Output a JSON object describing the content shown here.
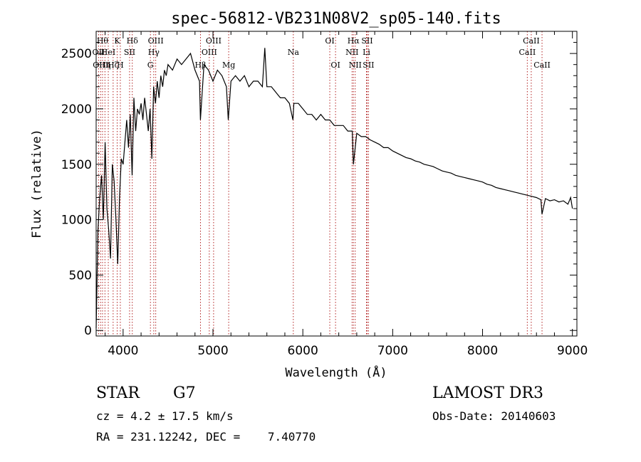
{
  "chart_data": {
    "type": "line",
    "title": "spec-56812-VB231N08V2_sp05-140.fits",
    "xlabel": "Wavelength (Å)",
    "ylabel": "Flux (relative)",
    "xlim": [
      3700,
      9050
    ],
    "ylim": [
      -50,
      2700
    ],
    "xticks": [
      4000,
      5000,
      6000,
      7000,
      8000,
      9000
    ],
    "yticks": [
      0,
      500,
      1000,
      1500,
      2000,
      2500
    ],
    "x": [
      3700,
      3720,
      3740,
      3760,
      3780,
      3800,
      3820,
      3840,
      3860,
      3880,
      3900,
      3920,
      3940,
      3960,
      3980,
      4000,
      4020,
      4040,
      4060,
      4080,
      4100,
      4120,
      4140,
      4160,
      4180,
      4200,
      4220,
      4240,
      4260,
      4280,
      4300,
      4320,
      4340,
      4360,
      4380,
      4400,
      4420,
      4440,
      4460,
      4480,
      4500,
      4550,
      4600,
      4650,
      4700,
      4750,
      4800,
      4850,
      4860,
      4900,
      4950,
      5000,
      5050,
      5100,
      5150,
      5170,
      5200,
      5250,
      5300,
      5350,
      5400,
      5450,
      5500,
      5550,
      5577,
      5600,
      5650,
      5700,
      5750,
      5800,
      5850,
      5890,
      5900,
      5950,
      6000,
      6050,
      6100,
      6150,
      6200,
      6250,
      6300,
      6350,
      6400,
      6450,
      6500,
      6550,
      6563,
      6600,
      6650,
      6700,
      6750,
      6800,
      6850,
      6900,
      6950,
      7000,
      7050,
      7100,
      7150,
      7200,
      7250,
      7300,
      7350,
      7400,
      7450,
      7500,
      7550,
      7600,
      7650,
      7700,
      7750,
      7800,
      7850,
      7900,
      7950,
      8000,
      8050,
      8100,
      8150,
      8200,
      8250,
      8300,
      8350,
      8400,
      8450,
      8500,
      8550,
      8600,
      8650,
      8662,
      8700,
      8750,
      8800,
      8850,
      8900,
      8950,
      8980,
      9000
    ],
    "y": [
      20,
      900,
      1200,
      1400,
      1000,
      1700,
      1100,
      900,
      650,
      1500,
      1350,
      1000,
      600,
      1200,
      1550,
      1500,
      1700,
      1900,
      1650,
      1950,
      1400,
      2100,
      1800,
      2000,
      1950,
      2050,
      1900,
      2100,
      1950,
      1800,
      2000,
      1550,
      2200,
      2050,
      2250,
      2100,
      2300,
      2200,
      2350,
      2300,
      2400,
      2350,
      2450,
      2400,
      2450,
      2500,
      2350,
      2250,
      1900,
      2400,
      2350,
      2250,
      2350,
      2300,
      2200,
      1900,
      2250,
      2300,
      2250,
      2300,
      2200,
      2250,
      2250,
      2200,
      2550,
      2200,
      2200,
      2150,
      2100,
      2100,
      2050,
      1900,
      2050,
      2050,
      2000,
      1950,
      1950,
      1900,
      1950,
      1900,
      1900,
      1850,
      1850,
      1850,
      1800,
      1800,
      1500,
      1780,
      1750,
      1750,
      1720,
      1700,
      1680,
      1650,
      1650,
      1620,
      1600,
      1580,
      1560,
      1550,
      1530,
      1520,
      1500,
      1490,
      1480,
      1460,
      1440,
      1430,
      1420,
      1400,
      1390,
      1380,
      1370,
      1360,
      1350,
      1340,
      1320,
      1310,
      1290,
      1280,
      1270,
      1260,
      1250,
      1240,
      1230,
      1220,
      1210,
      1200,
      1180,
      1050,
      1190,
      1170,
      1180,
      1160,
      1170,
      1140,
      1200,
      1100
    ],
    "lines": [
      {
        "wl": 3727,
        "labels": [
          "OII"
        ],
        "row": 1
      },
      {
        "wl": 3750,
        "labels": [
          "OIII"
        ],
        "row": 2
      },
      {
        "wl": 3771,
        "labels": [
          "Hθ"
        ],
        "row": 0
      },
      {
        "wl": 3798,
        "labels": [
          "Hη"
        ],
        "row": 2
      },
      {
        "wl": 3835,
        "labels": [
          "HeI"
        ],
        "row": 1
      },
      {
        "wl": 3889,
        "labels": [
          "Hζ"
        ],
        "row": 2
      },
      {
        "wl": 3934,
        "labels": [
          "K"
        ],
        "row": 0
      },
      {
        "wl": 3969,
        "labels": [
          "H"
        ],
        "row": 2
      },
      {
        "wl": 4072,
        "labels": [
          "SII"
        ],
        "row": 1
      },
      {
        "wl": 4102,
        "labels": [
          "Hδ"
        ],
        "row": 0
      },
      {
        "wl": 4304,
        "labels": [
          "G"
        ],
        "row": 2
      },
      {
        "wl": 4341,
        "labels": [
          "Hγ"
        ],
        "row": 1
      },
      {
        "wl": 4363,
        "labels": [
          "OIII"
        ],
        "row": 0
      },
      {
        "wl": 4861,
        "labels": [
          "Hβ"
        ],
        "row": 2
      },
      {
        "wl": 4959,
        "labels": [
          "OIII"
        ],
        "row": 1
      },
      {
        "wl": 5007,
        "labels": [
          "OIII"
        ],
        "row": 0
      },
      {
        "wl": 5175,
        "labels": [
          "Mg"
        ],
        "row": 2
      },
      {
        "wl": 5894,
        "labels": [
          "Na"
        ],
        "row": 1
      },
      {
        "wl": 6300,
        "labels": [
          "OI"
        ],
        "row": 0
      },
      {
        "wl": 6364,
        "labels": [
          "OI"
        ],
        "row": 2
      },
      {
        "wl": 6548,
        "labels": [
          "NII"
        ],
        "row": 1
      },
      {
        "wl": 6563,
        "labels": [
          "Hα"
        ],
        "row": 0
      },
      {
        "wl": 6583,
        "labels": [
          "NII"
        ],
        "row": 2
      },
      {
        "wl": 6708,
        "labels": [
          "Li"
        ],
        "row": 1
      },
      {
        "wl": 6716,
        "labels": [
          "SII"
        ],
        "row": 0
      },
      {
        "wl": 6731,
        "labels": [
          "SII"
        ],
        "row": 2
      },
      {
        "wl": 8498,
        "labels": [
          "CaII"
        ],
        "row": 1
      },
      {
        "wl": 8542,
        "labels": [
          "CaII"
        ],
        "row": 0
      },
      {
        "wl": 8662,
        "labels": [
          "CaII"
        ],
        "row": 2
      }
    ]
  },
  "info": {
    "class_label": "STAR",
    "subclass": "G7",
    "survey": "LAMOST DR3",
    "redshift": "cz = 4.2 ± 17.5 km/s",
    "obs_date": "Obs-Date: 20140603",
    "coords": "RA = 231.12242, DEC =    7.40770"
  }
}
